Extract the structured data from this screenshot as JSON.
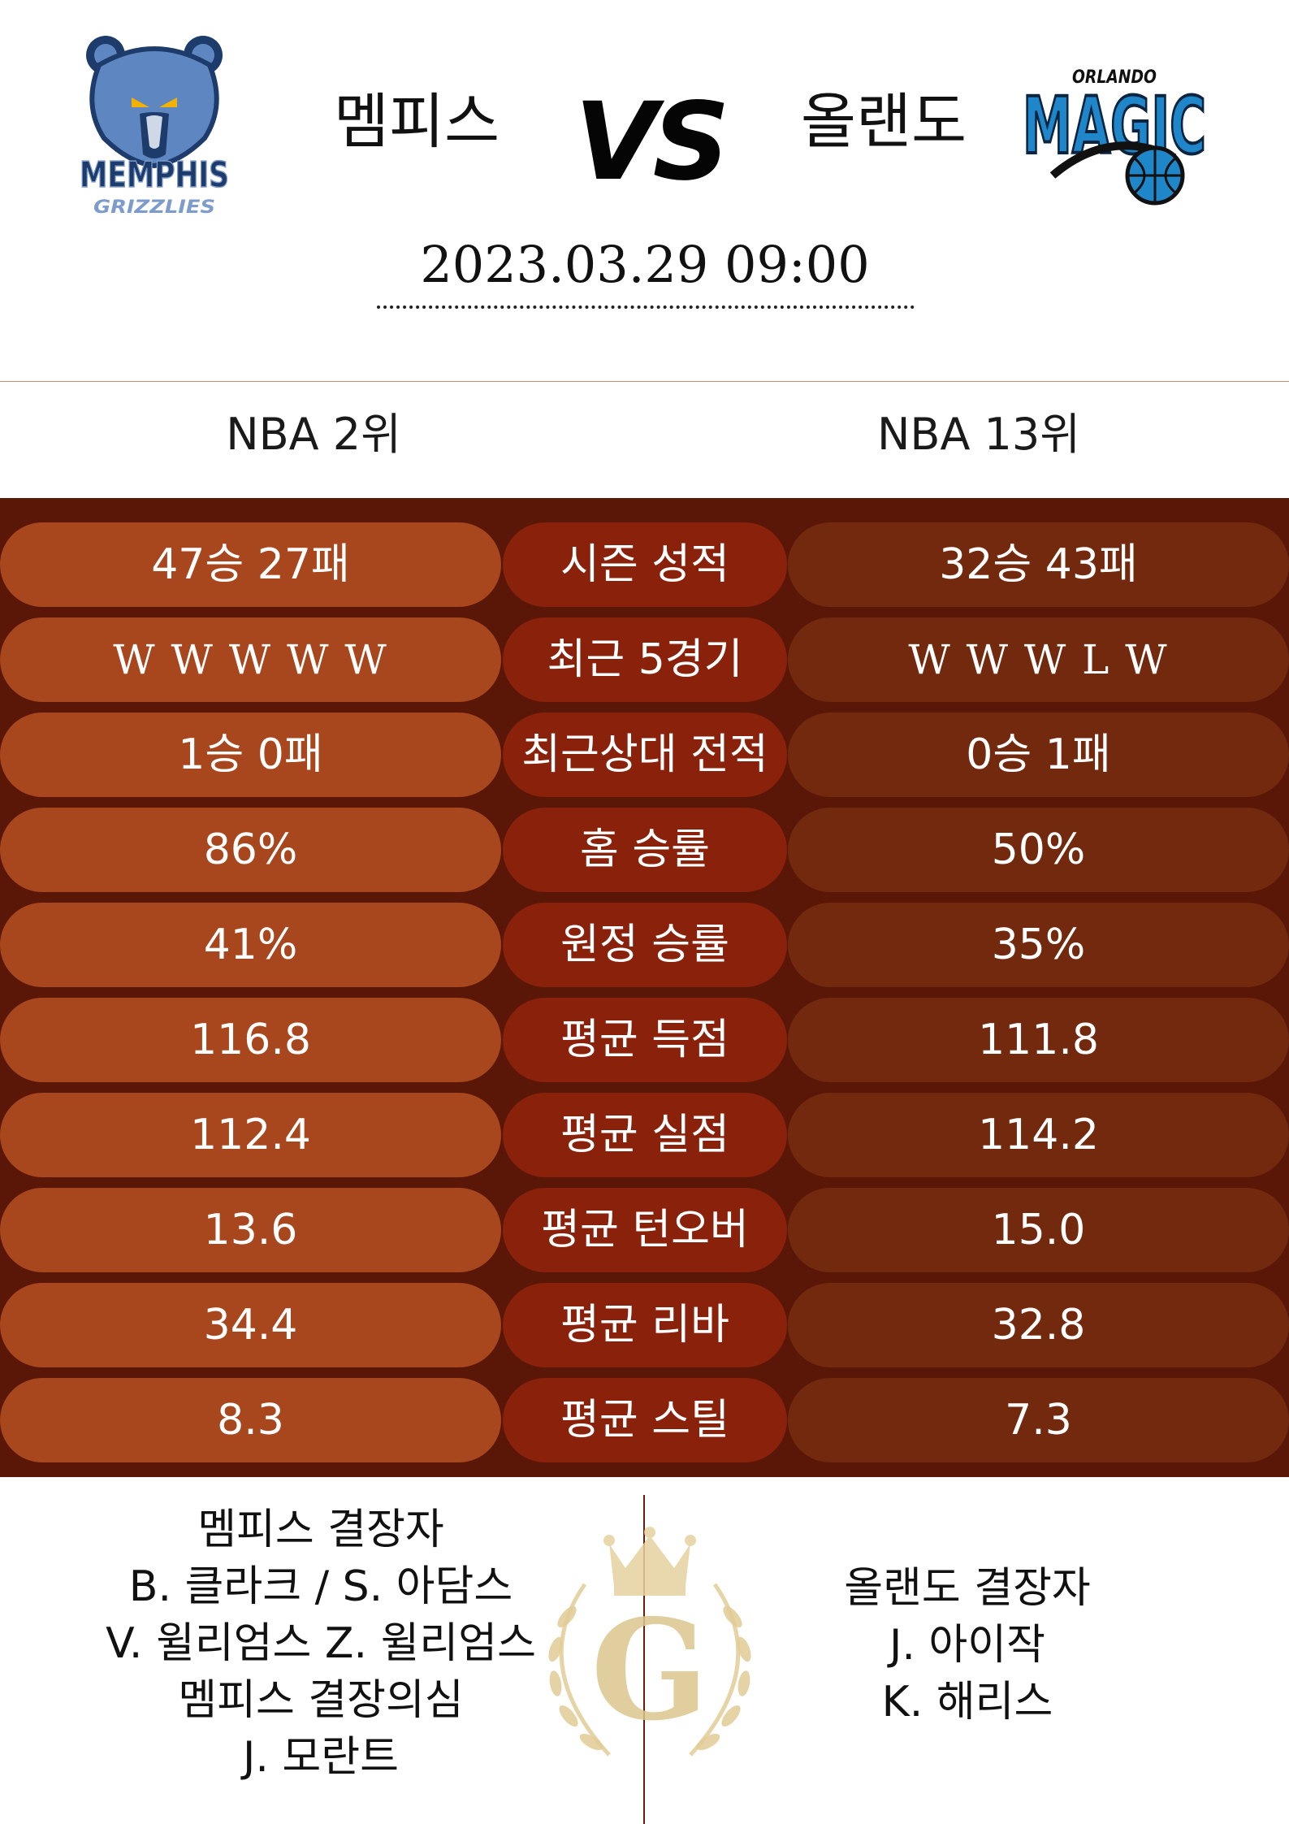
{
  "match": {
    "home_team": "멤피스",
    "away_team": "올랜도",
    "vs": "VS",
    "datetime": "2023.03.29  09:00",
    "home_rank": "NBA 2위",
    "away_rank": "NBA 13위",
    "home_logo_text": [
      "MEMPHIS",
      "GRIZZLIES"
    ],
    "away_logo_text": [
      "ORLANDO",
      "MAGIC"
    ]
  },
  "stats": [
    {
      "label": "시즌 성적",
      "home": "47승 27패",
      "away": "32승 43패"
    },
    {
      "label": "최근 5경기",
      "home": "W  W  W  W  W",
      "away": "W  W  W  L  W"
    },
    {
      "label": "최근상대 전적",
      "home": "1승 0패",
      "away": "0승 1패"
    },
    {
      "label": "홈 승률",
      "home": "86%",
      "away": "50%"
    },
    {
      "label": "원정 승률",
      "home": "41%",
      "away": "35%"
    },
    {
      "label": "평균 득점",
      "home": "116.8",
      "away": "111.8"
    },
    {
      "label": "평균 실점",
      "home": "112.4",
      "away": "114.2"
    },
    {
      "label": "평균 턴오버",
      "home": "13.6",
      "away": "15.0"
    },
    {
      "label": "평균 리바",
      "home": "34.4",
      "away": "32.8"
    },
    {
      "label": "평균 스틸",
      "home": "8.3",
      "away": "7.3"
    }
  ],
  "absences": {
    "home": [
      "멤피스 결장자",
      "B. 클라크 / S. 아담스",
      "V. 윌리엄스 Z. 윌리엄스",
      "멤피스 결장의심",
      "J. 모란트"
    ],
    "away": [
      "올랜도 결장자",
      "J. 아이작",
      "K. 해리스"
    ]
  },
  "emblem_letter": "G",
  "colors": {
    "stats_bg": "#5a1707",
    "home_pill": "#a8461d",
    "label_pill": "#8a210b",
    "away_pill": "#73290e",
    "gold": "#d8bf85"
  }
}
